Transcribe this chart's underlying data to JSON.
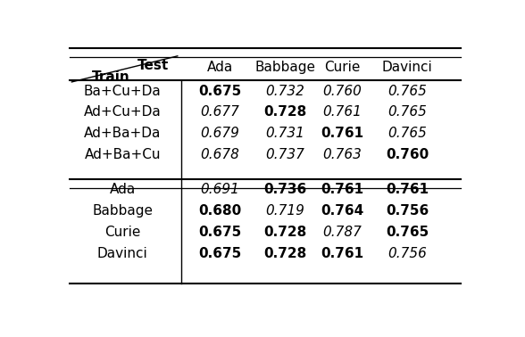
{
  "col_headers": [
    "Ada",
    "Babbage",
    "Curie",
    "Davinci"
  ],
  "rows": [
    {
      "train": "Ba+Cu+Da",
      "values": [
        "0.675",
        "0.732",
        "0.760",
        "0.765"
      ],
      "bold": [
        true,
        false,
        false,
        false
      ]
    },
    {
      "train": "Ad+Cu+Da",
      "values": [
        "0.677",
        "0.728",
        "0.761",
        "0.765"
      ],
      "bold": [
        false,
        true,
        false,
        false
      ]
    },
    {
      "train": "Ad+Ba+Da",
      "values": [
        "0.679",
        "0.731",
        "0.761",
        "0.765"
      ],
      "bold": [
        false,
        false,
        true,
        false
      ]
    },
    {
      "train": "Ad+Ba+Cu",
      "values": [
        "0.678",
        "0.737",
        "0.763",
        "0.760"
      ],
      "bold": [
        false,
        false,
        false,
        true
      ]
    },
    {
      "train": "Ada",
      "values": [
        "0.691",
        "0.736",
        "0.761",
        "0.761"
      ],
      "bold": [
        false,
        true,
        true,
        true
      ]
    },
    {
      "train": "Babbage",
      "values": [
        "0.680",
        "0.719",
        "0.764",
        "0.756"
      ],
      "bold": [
        true,
        false,
        true,
        true
      ]
    },
    {
      "train": "Curie",
      "values": [
        "0.675",
        "0.728",
        "0.787",
        "0.765"
      ],
      "bold": [
        true,
        true,
        false,
        true
      ]
    },
    {
      "train": "Davinci",
      "values": [
        "0.675",
        "0.728",
        "0.761",
        "0.756"
      ],
      "bold": [
        true,
        true,
        true,
        false
      ]
    }
  ],
  "section_break_after": 3,
  "bg_color": "#ffffff",
  "font_size": 11
}
